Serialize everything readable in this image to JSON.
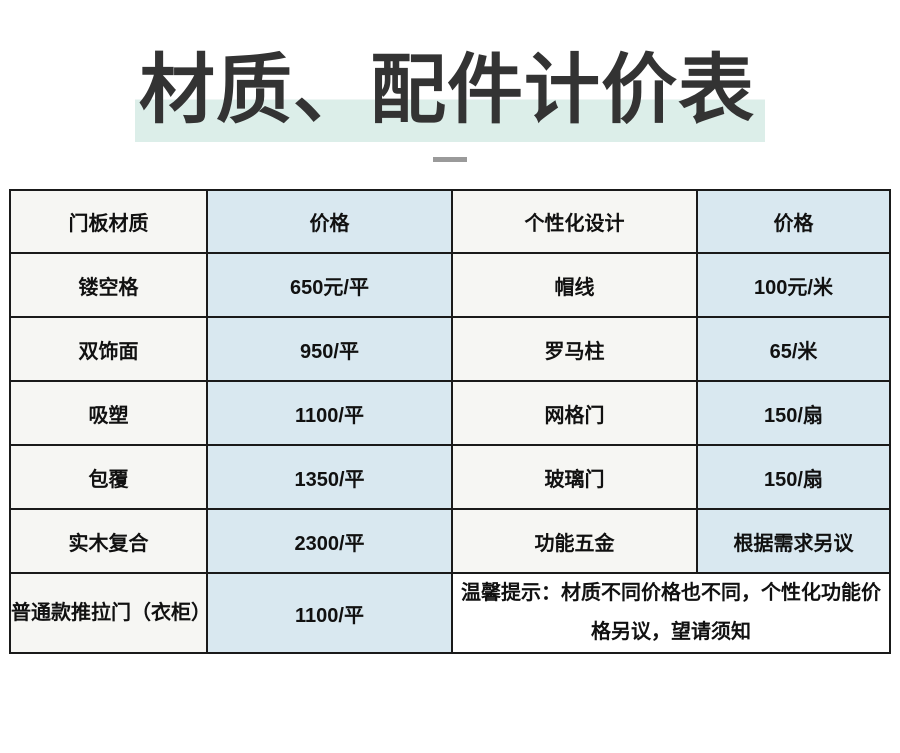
{
  "page": {
    "title": "材质、配件计价表",
    "colors": {
      "title_text": "#333333",
      "title_highlight": "#dceee9",
      "dash": "#9a9a9a",
      "column_offwhite": "#f6f6f3",
      "column_blue": "#d9e8f0",
      "note_background": "#ffffff",
      "border": "#1a1a1a"
    }
  },
  "table": {
    "headers": [
      "门板材质",
      "价格",
      "个性化设计",
      "价格"
    ],
    "rows": [
      [
        "镂空格",
        "650元/平",
        "帽线",
        "100元/米"
      ],
      [
        "双饰面",
        "950/平",
        "罗马柱",
        "65/米"
      ],
      [
        "吸塑",
        "1100/平",
        "网格门",
        "150/扇"
      ],
      [
        "包覆",
        "1350/平",
        "玻璃门",
        "150/扇"
      ],
      [
        "实木复合",
        "2300/平",
        "功能五金",
        "根据需求另议"
      ]
    ],
    "last_row": {
      "material": "普通款推拉门（衣柜）",
      "price": "1100/平",
      "note": "温馨提示：材质不同价格也不同，个性化功能价格另议，望请须知"
    }
  }
}
